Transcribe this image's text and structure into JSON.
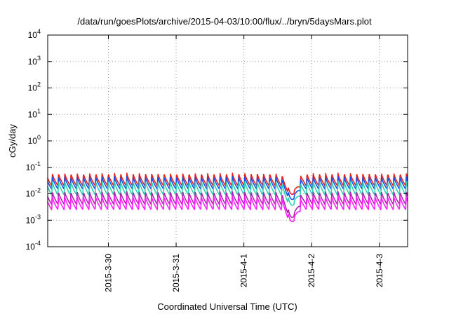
{
  "chart_data": {
    "type": "line",
    "title": "/data/run/goesPlots/archive/2015-04-03/10:00/flux/../bryn/5daysMars.plot",
    "xlabel": "Coordinated Universal Time (UTC)",
    "ylabel": "cGy/day",
    "x_type": "datetime",
    "xlim": [
      "2015-03-29T02:30",
      "2015-04-03T10:00"
    ],
    "x_ticks": [
      {
        "label": "2015-3-30",
        "value": "2015-03-30T00:00"
      },
      {
        "label": "2015-3-31",
        "value": "2015-03-31T00:00"
      },
      {
        "label": "2015-4-1",
        "value": "2015-04-01T00:00"
      },
      {
        "label": "2015-4-2",
        "value": "2015-04-02T00:00"
      },
      {
        "label": "2015-4-3",
        "value": "2015-04-03T00:00"
      }
    ],
    "y_scale": "log",
    "ylim": [
      0.0001,
      10000
    ],
    "y_ticks": [
      {
        "base": "10",
        "exp": "4",
        "value": 10000
      },
      {
        "base": "10",
        "exp": "3",
        "value": 1000
      },
      {
        "base": "10",
        "exp": "2",
        "value": 100
      },
      {
        "base": "10",
        "exp": "1",
        "value": 10
      },
      {
        "base": "10",
        "exp": "0",
        "value": 1
      },
      {
        "base": "10",
        "exp": "-1",
        "value": 0.1
      },
      {
        "base": "10",
        "exp": "-2",
        "value": 0.01
      },
      {
        "base": "10",
        "exp": "-3",
        "value": 0.001
      },
      {
        "base": "10",
        "exp": "-4",
        "value": 0.0001
      }
    ],
    "grid": true,
    "legend": "none",
    "series_colors": [
      "#e8201a",
      "#1a4fe8",
      "#2fcfb0",
      "#b020b0",
      "#ff20ff"
    ],
    "series_note": "five periodic dose-rate series, peaks every ~2.2 h",
    "peak_period_hours": 2.2,
    "series_peak_values": [
      0.06,
      0.045,
      0.03,
      0.012,
      0.008
    ],
    "series_trough_values": [
      0.02,
      0.015,
      0.009,
      0.004,
      0.0025
    ],
    "dip_event": {
      "time": "2015-04-01T17:00",
      "min_values": [
        0.008,
        0.005,
        0.003,
        0.001,
        0.0007
      ]
    }
  }
}
